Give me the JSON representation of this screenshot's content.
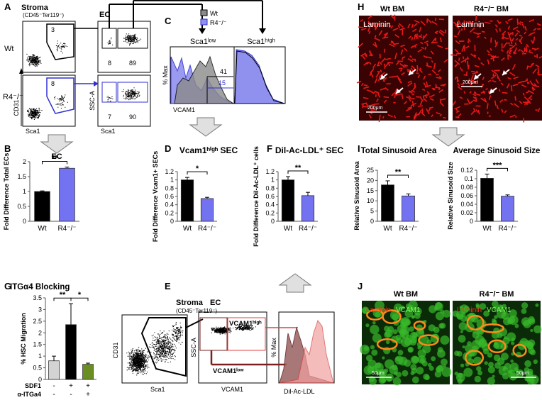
{
  "panel_letters": [
    "A",
    "B",
    "C",
    "D",
    "E",
    "F",
    "G",
    "H",
    "I",
    "J"
  ],
  "panel_a": {
    "stroma": "Stroma",
    "stroma_sub": "(CD45⁻Ter119⁻)",
    "ec": "EC",
    "wt": "Wt",
    "r4": "R4⁻/⁻",
    "y_stroma": "CD31",
    "x_stroma": "Sca1",
    "y_ec": "SSC-A",
    "x_ec": "Sca1",
    "stroma_gates": [
      3,
      8
    ],
    "ec_gates": [
      [
        8,
        89
      ],
      [
        7,
        90
      ]
    ]
  },
  "panel_c": {
    "legend": [
      "Wt",
      "R4⁻/⁻"
    ],
    "low": "Sca1ˡᵒʷ",
    "high": "Sca1ʰⁱᵍʰ",
    "y": "% Max",
    "x": "VCAM1",
    "gates": [
      41,
      15
    ]
  },
  "panel_e": {
    "stroma": "Stroma",
    "stroma_sub": "(CD45⁻Ter119⁻)",
    "ec": "EC",
    "y_stroma": "CD31",
    "x_stroma": "Sca1",
    "y_ec": "SSC-A",
    "x_ec": "VCAM1",
    "high": "VCAM1ʰⁱᵍʰ",
    "low": "VCAM1ˡᵒʷ",
    "y_hist": "% Max",
    "x_hist": "Dil-Ac-LDL"
  },
  "panel_g": {
    "rows": [
      {
        "name": "SDF1",
        "signs": [
          "-",
          "+",
          "+"
        ]
      },
      {
        "name": "α-ITGa4",
        "signs": [
          "-",
          "-",
          "+"
        ]
      }
    ]
  },
  "panel_h": {
    "titles": [
      "Wt BM",
      "R4⁻/⁻ BM"
    ],
    "stain": "Laminin",
    "scale": "200μm"
  },
  "panel_j": {
    "titles": [
      "Wt BM",
      "R4⁻/⁻ BM"
    ],
    "stain": [
      "Laminin",
      "VCAM1"
    ],
    "scale": "50μm"
  },
  "chart_data": [
    {
      "type": "bar",
      "title": "EC",
      "ylabel": "Fold Difference Total ECs",
      "categories": [
        "Wt",
        "R4⁻/⁻"
      ],
      "values": [
        1.0,
        1.78
      ],
      "errors": [
        0.02,
        0.04
      ],
      "colors": [
        "#000000",
        "#7373f2"
      ],
      "ylim": [
        0,
        2
      ],
      "yticks": [
        0,
        0.5,
        1,
        1.5,
        2
      ],
      "significance": [
        "**"
      ]
    },
    {
      "type": "bar",
      "title": "Vcam1ʰⁱᵍʰ SEC",
      "ylabel": "Fold Difference Vcam1+ SECs",
      "categories": [
        "Wt",
        "R4⁻/⁻"
      ],
      "values": [
        1.0,
        0.55
      ],
      "errors": [
        0.06,
        0.03
      ],
      "colors": [
        "#000000",
        "#7373f2"
      ],
      "ylim": [
        0,
        1.2
      ],
      "yticks": [
        0,
        0.2,
        0.4,
        0.6,
        0.8,
        1,
        1.2
      ],
      "significance": [
        "*"
      ]
    },
    {
      "type": "bar",
      "title": "Dil-Ac-LDL⁺ SEC",
      "ylabel": "Fold Difference Dil-Ac-LDL⁺ cells",
      "categories": [
        "Wt",
        "R4⁻/⁻"
      ],
      "values": [
        1.0,
        0.62
      ],
      "errors": [
        0.08,
        0.08
      ],
      "colors": [
        "#000000",
        "#7373f2"
      ],
      "ylim": [
        0,
        1.2
      ],
      "yticks": [
        0,
        0.2,
        0.4,
        0.6,
        0.8,
        1,
        1.2
      ],
      "significance": [
        "**"
      ]
    },
    {
      "type": "bar",
      "title": "Total Sinusoid Area",
      "ylabel": "Relative Sinusoid Area",
      "categories": [
        "Wt",
        "R4⁻/⁻"
      ],
      "values": [
        17.8,
        12.4
      ],
      "errors": [
        2.0,
        1.0
      ],
      "colors": [
        "#000000",
        "#7373f2"
      ],
      "ylim": [
        0,
        25
      ],
      "yticks": [
        0,
        5,
        10,
        15,
        20,
        25
      ],
      "significance": [
        "**"
      ]
    },
    {
      "type": "bar",
      "title": "Average Sinusoid Size",
      "ylabel": "Relative Sinusoid Size",
      "categories": [
        "Wt",
        "R4⁻/⁻"
      ],
      "values": [
        0.101,
        0.059
      ],
      "errors": [
        0.01,
        0.003
      ],
      "colors": [
        "#000000",
        "#7373f2"
      ],
      "ylim": [
        0,
        0.12
      ],
      "yticks": [
        0,
        0.02,
        0.04,
        0.06,
        0.08,
        0.1,
        0.12
      ],
      "significance": [
        "***"
      ]
    },
    {
      "type": "bar",
      "title": "ITGα4 Blocking",
      "ylabel": "% HSC Migration",
      "categories": [
        null,
        null,
        null
      ],
      "values": [
        0.8,
        2.35,
        0.65
      ],
      "errors": [
        0.2,
        0.9,
        0.05
      ],
      "colors": [
        "#d3d3d3",
        "#000000",
        "#6b8e23"
      ],
      "ylim": [
        0,
        3.5
      ],
      "yticks": [
        0,
        0.5,
        1,
        1.5,
        2,
        2.5,
        3,
        3.5
      ],
      "significance": [
        "**",
        "*"
      ]
    }
  ]
}
